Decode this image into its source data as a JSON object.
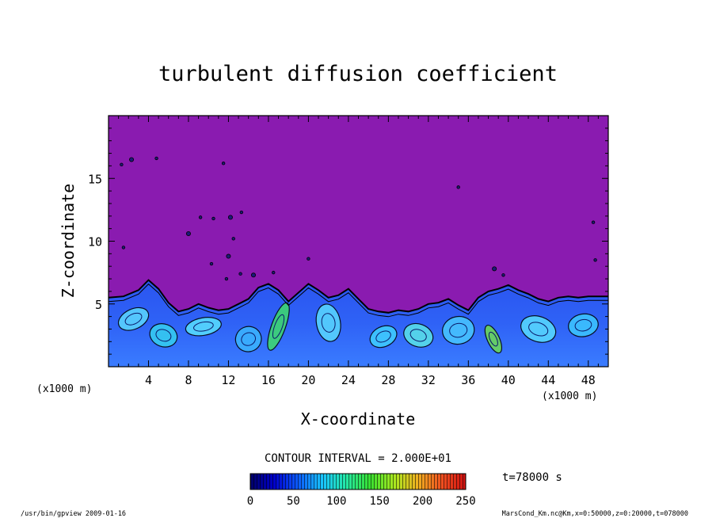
{
  "chart_data": {
    "type": "heatmap",
    "title": "turbulent diffusion coefficient",
    "xlabel": "X-coordinate",
    "ylabel": "Z-coordinate",
    "x_unit_left": "(x1000 m)",
    "x_unit_right": "(x1000 m)",
    "xlim": [
      0,
      50
    ],
    "ylim": [
      0,
      20
    ],
    "xticks": [
      4,
      8,
      12,
      16,
      20,
      24,
      28,
      32,
      36,
      40,
      44,
      48
    ],
    "yticks": [
      5,
      10,
      15
    ],
    "background_color": "#8a1bb0",
    "boundary_layer_top": [
      [
        0,
        5.5
      ],
      [
        1.5,
        5.6
      ],
      [
        3,
        6.1
      ],
      [
        4,
        6.9
      ],
      [
        5,
        6.2
      ],
      [
        6,
        5.1
      ],
      [
        7,
        4.4
      ],
      [
        8,
        4.6
      ],
      [
        9,
        5.0
      ],
      [
        10,
        4.7
      ],
      [
        11,
        4.5
      ],
      [
        12,
        4.6
      ],
      [
        13,
        5.0
      ],
      [
        14,
        5.4
      ],
      [
        15,
        6.3
      ],
      [
        16,
        6.6
      ],
      [
        17,
        6.1
      ],
      [
        18,
        5.2
      ],
      [
        19,
        5.9
      ],
      [
        20,
        6.6
      ],
      [
        21,
        6.1
      ],
      [
        22,
        5.5
      ],
      [
        23,
        5.7
      ],
      [
        24,
        6.2
      ],
      [
        25,
        5.4
      ],
      [
        26,
        4.6
      ],
      [
        27,
        4.4
      ],
      [
        28,
        4.3
      ],
      [
        29,
        4.5
      ],
      [
        30,
        4.4
      ],
      [
        31,
        4.6
      ],
      [
        32,
        5.0
      ],
      [
        33,
        5.1
      ],
      [
        34,
        5.4
      ],
      [
        35,
        4.9
      ],
      [
        36,
        4.5
      ],
      [
        37,
        5.5
      ],
      [
        38,
        6.0
      ],
      [
        39,
        6.2
      ],
      [
        40,
        6.5
      ],
      [
        41,
        6.1
      ],
      [
        42,
        5.8
      ],
      [
        43,
        5.4
      ],
      [
        44,
        5.2
      ],
      [
        45,
        5.5
      ],
      [
        46,
        5.6
      ],
      [
        47,
        5.5
      ],
      [
        48,
        5.6
      ],
      [
        50,
        5.6
      ]
    ],
    "eddies": [
      [
        2.5,
        3.8,
        1.6,
        0.8,
        "#5bd8ff"
      ],
      [
        5.5,
        2.5,
        1.4,
        0.9,
        "#35d0f0"
      ],
      [
        9.5,
        3.2,
        1.8,
        0.7,
        "#58e0ff"
      ],
      [
        14,
        2.2,
        1.3,
        1.0,
        "#3bb6ff"
      ],
      [
        17,
        3.2,
        0.7,
        2.0,
        "#3edc6a"
      ],
      [
        22,
        3.5,
        1.2,
        1.5,
        "#59d9ff"
      ],
      [
        27.5,
        2.4,
        1.4,
        0.8,
        "#3fd0ff"
      ],
      [
        31,
        2.5,
        1.5,
        0.9,
        "#5ae4e8"
      ],
      [
        35,
        2.9,
        1.6,
        1.1,
        "#48c8ff"
      ],
      [
        38.5,
        2.2,
        0.6,
        1.2,
        "#6edc50"
      ],
      [
        43,
        3.0,
        1.8,
        1.0,
        "#58dcff"
      ],
      [
        47.5,
        3.3,
        1.5,
        0.9,
        "#3cc8ff"
      ]
    ],
    "specks": [
      [
        2.3,
        16.5
      ],
      [
        1.3,
        16.1
      ],
      [
        4.8,
        16.6
      ],
      [
        11.5,
        16.2
      ],
      [
        12.2,
        11.9
      ],
      [
        10.5,
        11.8
      ],
      [
        13.3,
        12.3
      ],
      [
        9.2,
        11.9
      ],
      [
        8.0,
        10.6
      ],
      [
        12.5,
        10.2
      ],
      [
        11.8,
        7.0
      ],
      [
        13.2,
        7.4
      ],
      [
        14.5,
        7.3
      ],
      [
        20.0,
        8.6
      ],
      [
        16.5,
        7.5
      ],
      [
        35.0,
        14.3
      ],
      [
        38.6,
        7.8
      ],
      [
        39.5,
        7.3
      ],
      [
        48.5,
        11.5
      ],
      [
        48.7,
        8.5
      ],
      [
        12.0,
        8.8
      ],
      [
        10.3,
        8.2
      ],
      [
        1.5,
        9.5
      ]
    ],
    "contour_interval_label": "CONTOUR INTERVAL = 2.000E+01",
    "colorbar": {
      "ticks": [
        "0",
        "50",
        "100",
        "150",
        "200",
        "250"
      ],
      "min": 0,
      "max": 250,
      "colors": [
        "#000066",
        "#0000cc",
        "#0b5cff",
        "#19c3ff",
        "#24e8a6",
        "#38e030",
        "#a8e820",
        "#f0b020",
        "#f05020",
        "#d01010"
      ]
    },
    "time_label": "t=78000 s"
  },
  "footer": {
    "left": "/usr/bin/gpview  2009-01-16",
    "right": "MarsCond_Km.nc@Km,x=0:50000,z=0:20000,t=078000"
  }
}
